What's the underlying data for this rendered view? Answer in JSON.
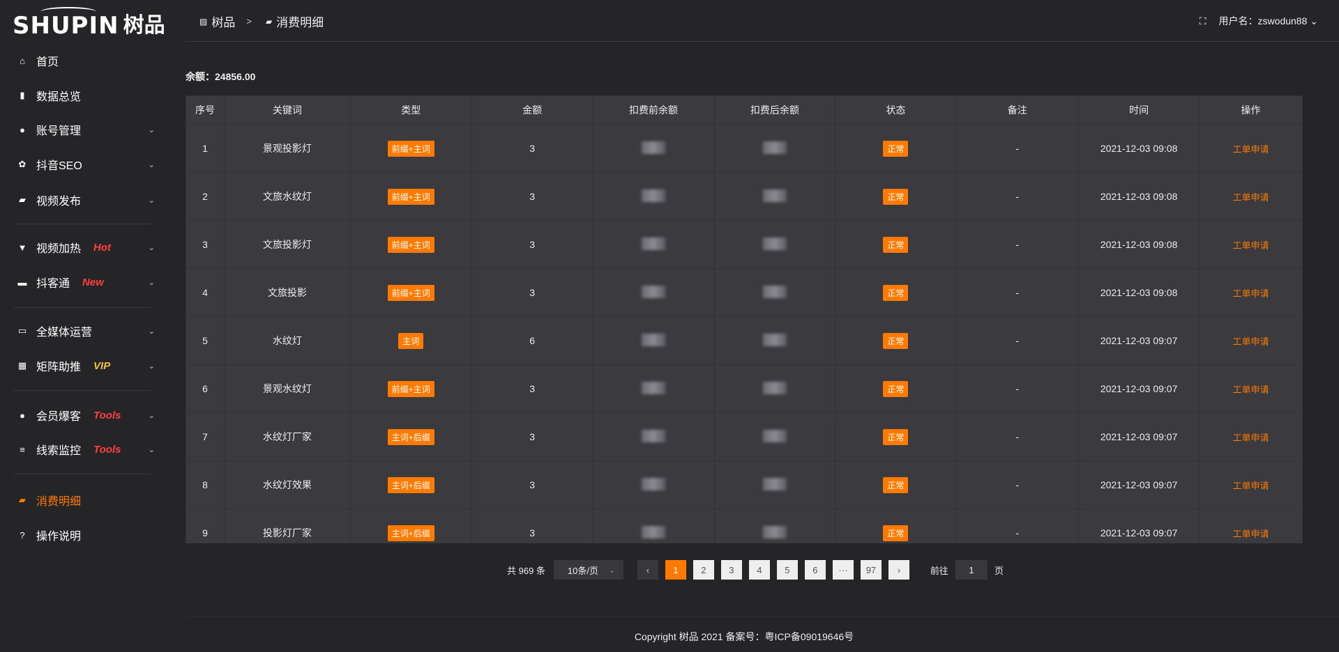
{
  "logo": {
    "en": "SHUPIN",
    "cn": "树品"
  },
  "sidebar": {
    "items": [
      {
        "label": "首页",
        "icon": "home-icon"
      },
      {
        "label": "数据总览",
        "icon": "bar-chart-icon"
      },
      {
        "label": "账号管理",
        "icon": "user-icon",
        "expandable": true
      },
      {
        "label": "抖音SEO",
        "icon": "gear-icon",
        "expandable": true
      },
      {
        "label": "视频发布",
        "icon": "camera-icon",
        "expandable": true
      },
      {
        "label": "视频加热",
        "icon": "billboard-icon",
        "tag": "Hot",
        "tag_color": "#ff4040",
        "expandable": true
      },
      {
        "label": "抖客通",
        "icon": "chat-icon",
        "tag": "New",
        "tag_color": "#ff4040",
        "expandable": true
      },
      {
        "label": "全媒体运营",
        "icon": "monitor-icon",
        "expandable": true
      },
      {
        "label": "矩阵助推",
        "icon": "grid-icon",
        "tag": "VIP",
        "tag_color": "#f5c242",
        "expandable": true
      },
      {
        "label": "会员爆客",
        "icon": "user-icon",
        "tag": "Tools",
        "tag_color": "#ff4040",
        "expandable": true
      },
      {
        "label": "线索监控",
        "icon": "sliders-icon",
        "tag": "Tools",
        "tag_color": "#ff4040",
        "expandable": true
      },
      {
        "label": "消费明细",
        "icon": "wallet-icon",
        "active": true
      },
      {
        "label": "操作说明",
        "icon": "question-icon"
      }
    ]
  },
  "header": {
    "breadcrumb": [
      "树品",
      "消费明细"
    ],
    "separator": ">",
    "user_label": "用户名：zswodun88"
  },
  "balance": "余额：24856.00",
  "table": {
    "columns": [
      "序号",
      "关键词",
      "类型",
      "金额",
      "扣费前余额",
      "扣费后余额",
      "状态",
      "备注",
      "时间",
      "操作"
    ],
    "rows": [
      {
        "no": "1",
        "keyword": "景观投影灯",
        "type": "前缀+主词",
        "amount": "3",
        "status": "正常",
        "note": "-",
        "time": "2021-12-03 09:08",
        "action": "工单申请"
      },
      {
        "no": "2",
        "keyword": "文旅水纹灯",
        "type": "前缀+主词",
        "amount": "3",
        "status": "正常",
        "note": "-",
        "time": "2021-12-03 09:08",
        "action": "工单申请"
      },
      {
        "no": "3",
        "keyword": "文旅投影灯",
        "type": "前缀+主词",
        "amount": "3",
        "status": "正常",
        "note": "-",
        "time": "2021-12-03 09:08",
        "action": "工单申请"
      },
      {
        "no": "4",
        "keyword": "文旅投影",
        "type": "前缀+主词",
        "amount": "3",
        "status": "正常",
        "note": "-",
        "time": "2021-12-03 09:08",
        "action": "工单申请"
      },
      {
        "no": "5",
        "keyword": "水纹灯",
        "type": "主词",
        "amount": "6",
        "status": "正常",
        "note": "-",
        "time": "2021-12-03 09:07",
        "action": "工单申请"
      },
      {
        "no": "6",
        "keyword": "景观水纹灯",
        "type": "前缀+主词",
        "amount": "3",
        "status": "正常",
        "note": "-",
        "time": "2021-12-03 09:07",
        "action": "工单申请"
      },
      {
        "no": "7",
        "keyword": "水纹灯厂家",
        "type": "主词+后缀",
        "amount": "3",
        "status": "正常",
        "note": "-",
        "time": "2021-12-03 09:07",
        "action": "工单申请"
      },
      {
        "no": "8",
        "keyword": "水纹灯效果",
        "type": "主词+后缀",
        "amount": "3",
        "status": "正常",
        "note": "-",
        "time": "2021-12-03 09:07",
        "action": "工单申请"
      },
      {
        "no": "9",
        "keyword": "投影灯厂家",
        "type": "主词+后缀",
        "amount": "3",
        "status": "正常",
        "note": "-",
        "time": "2021-12-03 09:07",
        "action": "工单申请"
      }
    ]
  },
  "pagination": {
    "total": "共 969 条",
    "page_size": "10条/页",
    "pages": [
      "1",
      "2",
      "3",
      "4",
      "5",
      "6",
      "···",
      "97"
    ],
    "current": "1",
    "goto_label": "前往",
    "goto_value": "1",
    "page_suffix": "页"
  },
  "footer": "Copyright 树品 2021 备案号：粤ICP备09019646号",
  "colors": {
    "accent": "#ff7a00",
    "background": "#252528",
    "table": "#3a3a3f"
  }
}
